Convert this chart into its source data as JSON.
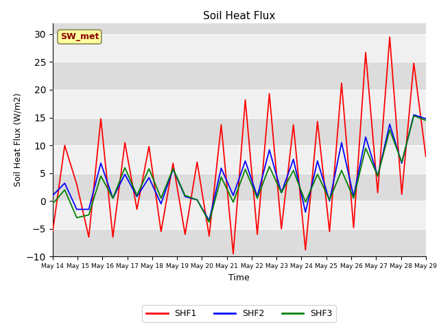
{
  "title": "Soil Heat Flux",
  "xlabel": "Time",
  "ylabel": "Soil Heat Flux (W/m2)",
  "ylim": [
    -10,
    32
  ],
  "yticks": [
    -10,
    -5,
    0,
    5,
    10,
    15,
    20,
    25,
    30
  ],
  "annotation_text": "SW_met",
  "annotation_color": "#8B0000",
  "annotation_bg": "#FFFFA0",
  "line_colors": {
    "SHF1": "red",
    "SHF2": "blue",
    "SHF3": "green"
  },
  "bg_color": "#E0E0E0",
  "stripe_color1": "#DCDCDC",
  "stripe_color2": "#F0F0F0",
  "xtick_labels": [
    "May 14",
    "May 15",
    "May 16",
    "May 17",
    "May 18",
    "May 19",
    "May 20",
    "May 21",
    "May 22",
    "May 23",
    "May 24",
    "May 25",
    "May 26",
    "May 27",
    "May 28",
    "May 29"
  ],
  "shf1": [
    -5.5,
    10.0,
    3.0,
    -6.5,
    14.8,
    -6.5,
    10.5,
    -1.5,
    9.8,
    -5.5,
    6.8,
    -6.0,
    7.0,
    -6.3,
    13.7,
    -9.5,
    18.2,
    -6.0,
    19.3,
    -5.0,
    13.7,
    -8.8,
    14.3,
    -5.5,
    21.2,
    -4.8,
    26.7,
    1.5,
    29.5,
    1.2,
    24.8,
    8.0
  ],
  "shf2": [
    1.0,
    3.2,
    -1.5,
    -1.5,
    6.8,
    0.5,
    4.8,
    0.8,
    4.2,
    -0.5,
    5.7,
    0.8,
    0.2,
    -3.5,
    5.9,
    1.0,
    7.2,
    0.8,
    9.2,
    1.5,
    7.5,
    -2.0,
    7.2,
    0.0,
    10.5,
    0.8,
    11.5,
    4.5,
    13.8,
    6.8,
    15.5,
    14.8
  ],
  "shf3": [
    -0.5,
    2.0,
    -3.0,
    -2.5,
    4.5,
    0.5,
    6.0,
    1.0,
    5.8,
    0.5,
    5.8,
    1.0,
    0.2,
    -3.8,
    4.3,
    -0.2,
    5.7,
    0.5,
    6.2,
    1.5,
    5.5,
    -0.2,
    4.8,
    0.2,
    5.5,
    0.5,
    9.5,
    4.5,
    12.8,
    7.0,
    15.3,
    14.5
  ]
}
